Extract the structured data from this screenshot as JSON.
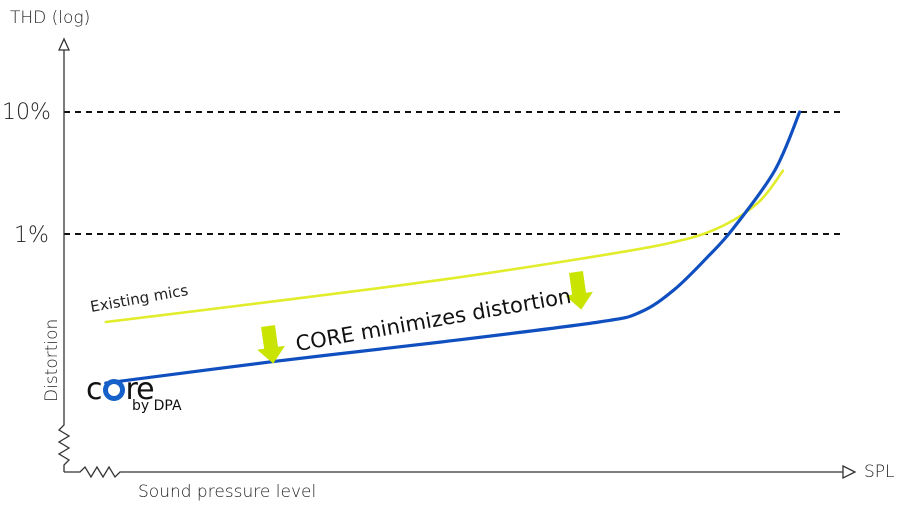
{
  "chart_data": {
    "type": "line",
    "y_axis_title": "THD (log)",
    "x_axis_title": "SPL",
    "x_axis_caption": "Sound pressure level",
    "y_axis_caption": "Distortion",
    "yscale": "log",
    "y_ticks": [
      "10%",
      "1%"
    ],
    "x_ticks": [],
    "grid": "dashed reference lines at 1% and 10%",
    "series": [
      {
        "name": "Existing mics",
        "color": "#e1ec2a",
        "points": [
          [
            0.05,
            0.19
          ],
          [
            0.25,
            0.28
          ],
          [
            0.45,
            0.42
          ],
          [
            0.62,
            0.63
          ],
          [
            0.72,
            0.83
          ],
          [
            0.78,
            1.1
          ],
          [
            0.83,
            1.8
          ],
          [
            0.86,
            3.3
          ]
        ]
      },
      {
        "name": "core by DPA",
        "color": "#0f4fbf",
        "points": [
          [
            0.05,
            0.06
          ],
          [
            0.25,
            0.09
          ],
          [
            0.45,
            0.13
          ],
          [
            0.64,
            0.19
          ],
          [
            0.69,
            0.23
          ],
          [
            0.73,
            0.35
          ],
          [
            0.77,
            0.65
          ],
          [
            0.8,
            1.1
          ],
          [
            0.85,
            3.3
          ],
          [
            0.88,
            10
          ]
        ]
      }
    ],
    "annotations": [
      {
        "text": "CORE minimizes distortion",
        "arrows": 2,
        "arrow_color": "#c8e400"
      }
    ]
  },
  "logo": {
    "word": "core",
    "sub": "by DPA"
  },
  "colors": {
    "axis": "#333333",
    "grid": "#111111",
    "arrow": "#c8e400"
  }
}
